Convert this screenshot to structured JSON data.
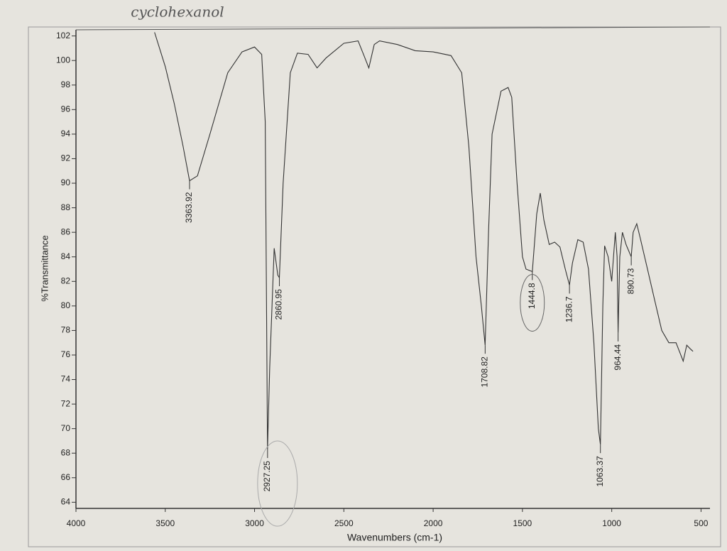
{
  "chart_data": {
    "type": "line",
    "title": "cyclohexanol",
    "xlabel": "Wavenumbers (cm-1)",
    "ylabel": "%Transmittance",
    "xlim": [
      4000,
      450
    ],
    "ylim": [
      63.5,
      102.5
    ],
    "xticks": [
      4000,
      3500,
      3000,
      2500,
      2000,
      1500,
      1000,
      500
    ],
    "yticks": [
      64,
      66,
      68,
      70,
      72,
      74,
      76,
      78,
      80,
      82,
      84,
      86,
      88,
      90,
      92,
      94,
      96,
      98,
      100,
      102
    ],
    "series": [
      {
        "name": "cyclohexanol",
        "color": "#333333",
        "x": [
          3560,
          3500,
          3450,
          3400,
          3363.92,
          3320,
          3250,
          3150,
          3070,
          3000,
          2960,
          2940,
          2927.25,
          2915,
          2890,
          2870,
          2860.95,
          2840,
          2800,
          2760,
          2700,
          2650,
          2600,
          2500,
          2420,
          2390,
          2360,
          2330,
          2300,
          2200,
          2100,
          2000,
          1900,
          1840,
          1800,
          1760,
          1730,
          1708.82,
          1690,
          1670,
          1620,
          1580,
          1560,
          1530,
          1500,
          1480,
          1444.8,
          1420,
          1400,
          1380,
          1350,
          1320,
          1290,
          1260,
          1236.7,
          1220,
          1190,
          1160,
          1130,
          1100,
          1075,
          1063.37,
          1050,
          1040,
          1020,
          1000,
          980,
          970,
          964.44,
          955,
          940,
          920,
          890.73,
          880,
          860,
          840,
          800,
          760,
          720,
          680,
          640,
          600,
          580,
          560,
          545
        ],
        "values": [
          102.3,
          99.5,
          96.5,
          93,
          90.2,
          90.6,
          94,
          99,
          100.7,
          101.1,
          100.5,
          95,
          68.3,
          75,
          84.7,
          82.5,
          82.3,
          90,
          99,
          100.6,
          100.5,
          99.4,
          100.2,
          101.4,
          101.6,
          100.5,
          99.4,
          101.3,
          101.6,
          101.3,
          100.8,
          100.7,
          100.4,
          99,
          93,
          84,
          80,
          76.8,
          86,
          94,
          97.5,
          97.8,
          97,
          90,
          84,
          83,
          82.8,
          87.5,
          89.2,
          87,
          85,
          85.2,
          84.8,
          83,
          81.7,
          83.5,
          85.4,
          85.2,
          83,
          77,
          70,
          68.7,
          80,
          84.9,
          84,
          82,
          86,
          84,
          77.8,
          84,
          86,
          85,
          84,
          86,
          86.7,
          85.5,
          83,
          80.5,
          78,
          77,
          77,
          75.5,
          76.8,
          76.5,
          76.3
        ]
      }
    ],
    "peaks": [
      3363.92,
      2927.25,
      2860.95,
      1708.82,
      1444.8,
      1236.7,
      1063.37,
      964.44,
      890.73
    ]
  }
}
